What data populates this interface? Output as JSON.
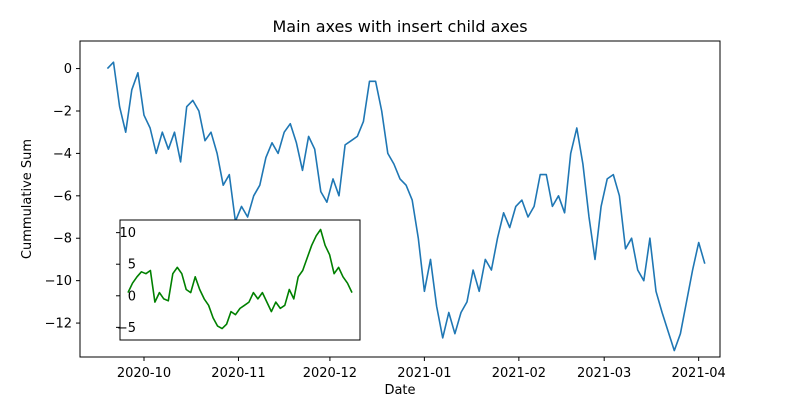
{
  "chart_data": [
    {
      "type": "line",
      "title": "Main axes with insert child axes",
      "xlabel": "Date",
      "ylabel": "Cummulative Sum",
      "xlim": [
        "2020-09-10",
        "2021-04-08"
      ],
      "ylim": [
        -13.6,
        1.3
      ],
      "xticks": [
        {
          "date": "2020-10-01",
          "label": "2020-10"
        },
        {
          "date": "2020-11-01",
          "label": "2020-11"
        },
        {
          "date": "2020-12-01",
          "label": "2020-12"
        },
        {
          "date": "2021-01-01",
          "label": "2021-01"
        },
        {
          "date": "2021-02-01",
          "label": "2021-02"
        },
        {
          "date": "2021-03-01",
          "label": "2021-03"
        },
        {
          "date": "2021-04-01",
          "label": "2021-04"
        }
      ],
      "yticks": [
        0,
        -2,
        -4,
        -6,
        -8,
        -10,
        -12
      ],
      "ytick_labels": [
        "0",
        "−2",
        "−4",
        "−6",
        "−8",
        "−10",
        "−12"
      ],
      "color": "#1f77b4",
      "series": [
        {
          "x": [
            "2020-09-19",
            "2020-09-21",
            "2020-09-23",
            "2020-09-25",
            "2020-09-27",
            "2020-09-29",
            "2020-10-01",
            "2020-10-03",
            "2020-10-05",
            "2020-10-07",
            "2020-10-09",
            "2020-10-11",
            "2020-10-13",
            "2020-10-15",
            "2020-10-17",
            "2020-10-19",
            "2020-10-21",
            "2020-10-23",
            "2020-10-25",
            "2020-10-27",
            "2020-10-29",
            "2020-10-31",
            "2020-11-02",
            "2020-11-04",
            "2020-11-06",
            "2020-11-08",
            "2020-11-10",
            "2020-11-12",
            "2020-11-14",
            "2020-11-16",
            "2020-11-18",
            "2020-11-20",
            "2020-11-22",
            "2020-11-24",
            "2020-11-26",
            "2020-11-28",
            "2020-11-30",
            "2020-12-02",
            "2020-12-04",
            "2020-12-06",
            "2020-12-08",
            "2020-12-10",
            "2020-12-12",
            "2020-12-14",
            "2020-12-16",
            "2020-12-18",
            "2020-12-20",
            "2020-12-22",
            "2020-12-24",
            "2020-12-26",
            "2020-12-28",
            "2020-12-30",
            "2021-01-01",
            "2021-01-03",
            "2021-01-05",
            "2021-01-07",
            "2021-01-09",
            "2021-01-11",
            "2021-01-13",
            "2021-01-15",
            "2021-01-17",
            "2021-01-19",
            "2021-01-21",
            "2021-01-23",
            "2021-01-25",
            "2021-01-27",
            "2021-01-29",
            "2021-01-31",
            "2021-02-02",
            "2021-02-04",
            "2021-02-06",
            "2021-02-08",
            "2021-02-10",
            "2021-02-12",
            "2021-02-14",
            "2021-02-16",
            "2021-02-18",
            "2021-02-20",
            "2021-02-22",
            "2021-02-24",
            "2021-02-26",
            "2021-02-28",
            "2021-03-02",
            "2021-03-04",
            "2021-03-06",
            "2021-03-08",
            "2021-03-10",
            "2021-03-12",
            "2021-03-14",
            "2021-03-16",
            "2021-03-18",
            "2021-03-20",
            "2021-03-22",
            "2021-03-24",
            "2021-03-26",
            "2021-03-28",
            "2021-03-30",
            "2021-04-01",
            "2021-04-03"
          ],
          "y": [
            0.0,
            0.3,
            -1.8,
            -3.0,
            -1.0,
            -0.2,
            -2.2,
            -2.8,
            -4.0,
            -3.0,
            -3.8,
            -3.0,
            -4.4,
            -1.8,
            -1.5,
            -2.0,
            -3.4,
            -3.0,
            -4.0,
            -5.5,
            -5.0,
            -7.2,
            -6.5,
            -7.0,
            -6.0,
            -5.5,
            -4.2,
            -3.5,
            -4.0,
            -3.0,
            -2.6,
            -3.5,
            -4.8,
            -3.2,
            -3.8,
            -5.8,
            -6.3,
            -5.2,
            -6.0,
            -3.6,
            -3.4,
            -3.2,
            -2.5,
            -0.6,
            -0.6,
            -2.0,
            -4.0,
            -4.5,
            -5.2,
            -5.5,
            -6.2,
            -8.0,
            -10.5,
            -9.0,
            -11.2,
            -12.7,
            -11.5,
            -12.5,
            -11.5,
            -11.0,
            -9.5,
            -10.5,
            -9.0,
            -9.5,
            -8.0,
            -6.8,
            -7.5,
            -6.5,
            -6.2,
            -7.0,
            -6.5,
            -5.0,
            -5.0,
            -6.5,
            -6.0,
            -6.8,
            -4.0,
            -2.8,
            -4.5,
            -7.0,
            -9.0,
            -6.5,
            -5.2,
            -5.0,
            -6.0,
            -8.5,
            -8.0,
            -9.5,
            -10.0,
            -8.0,
            -10.5,
            -11.5,
            -12.4,
            -13.3,
            -12.5,
            -11.0,
            -9.5,
            -8.2,
            -9.2
          ],
          "values_note": ""
        }
      ]
    },
    {
      "type": "line",
      "title": "",
      "xlabel": "",
      "ylabel": "",
      "xlim": [
        0,
        100
      ],
      "ylim": [
        -7,
        12
      ],
      "yticks": [
        10,
        5,
        0,
        -5
      ],
      "ytick_labels": [
        "10",
        "5",
        "0",
        "−5"
      ],
      "color": "#008000",
      "series": [
        {
          "x": [
            0,
            2,
            4,
            6,
            8,
            10,
            12,
            14,
            16,
            18,
            20,
            22,
            24,
            26,
            28,
            30,
            32,
            34,
            36,
            38,
            40,
            42,
            44,
            46,
            48,
            50,
            52,
            54,
            56,
            58,
            60,
            62,
            64,
            66,
            68,
            70,
            72,
            74,
            76,
            78,
            80,
            82,
            84,
            86,
            88,
            90,
            92,
            94,
            96,
            98,
            100
          ],
          "y": [
            0.5,
            2.0,
            3.0,
            3.8,
            3.5,
            4.0,
            -1.0,
            0.5,
            -0.5,
            -0.8,
            3.5,
            4.5,
            3.5,
            1.0,
            0.5,
            3.0,
            1.0,
            -0.5,
            -1.5,
            -3.5,
            -4.8,
            -5.2,
            -4.5,
            -2.5,
            -3.0,
            -2.0,
            -1.5,
            -1.0,
            0.5,
            -0.5,
            0.5,
            -1.0,
            -2.5,
            -1.0,
            -2.0,
            -1.5,
            1.0,
            -0.5,
            3.0,
            4.0,
            6.0,
            8.0,
            9.5,
            10.5,
            8.0,
            6.5,
            3.5,
            4.5,
            3.0,
            2.0,
            0.5
          ]
        }
      ]
    }
  ]
}
